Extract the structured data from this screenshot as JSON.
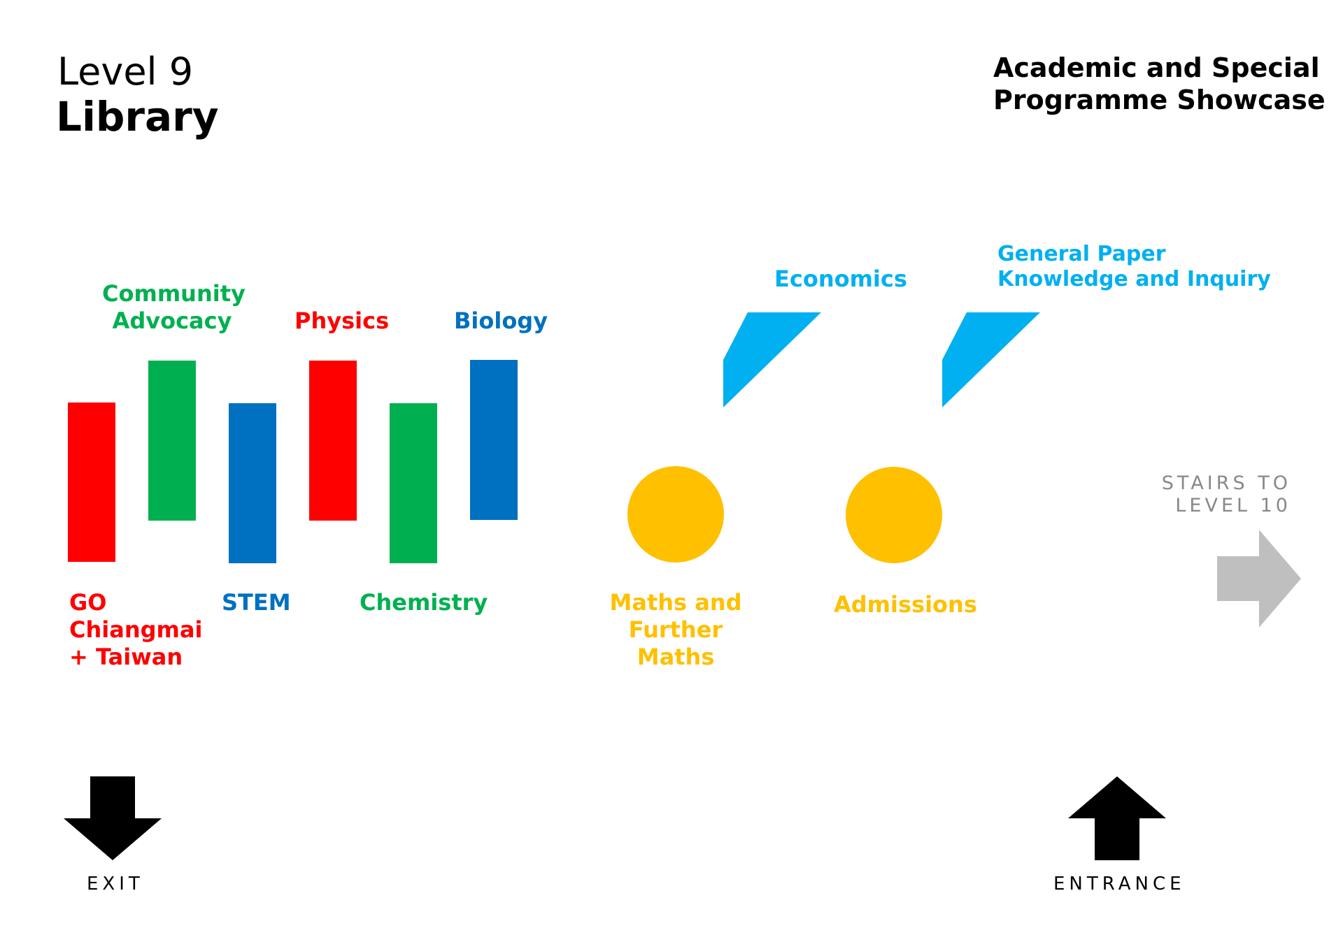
{
  "header": {
    "level": "Level 9",
    "area": "Library",
    "showcase": "Academic and Special\nProgramme Showcase"
  },
  "colors": {
    "red": "#FF0000",
    "green": "#00B050",
    "blue": "#0070C0",
    "light_blue": "#00B0F0",
    "yellow": "#FFC000",
    "grey": "#BFBFBF",
    "black": "#000000"
  },
  "booths": {
    "go_chiangmai": "GO\nChiangmai\n+ Taiwan",
    "community_advocacy": "Community\nAdvocacy",
    "stem": "STEM",
    "physics": "Physics",
    "chemistry": "Chemistry",
    "biology": "Biology",
    "economics": "Economics",
    "general_paper": "General Paper\nKnowledge and Inquiry",
    "maths": "Maths and\nFurther Maths",
    "admissions": "Admissions"
  },
  "navigation": {
    "stairs": "STAIRS TO\nLEVEL 10",
    "exit": "EXIT",
    "entrance": "ENTRANCE",
    "exit_icon": "arrow-down-icon",
    "entrance_icon": "arrow-up-icon",
    "stairs_icon": "arrow-right-icon"
  }
}
